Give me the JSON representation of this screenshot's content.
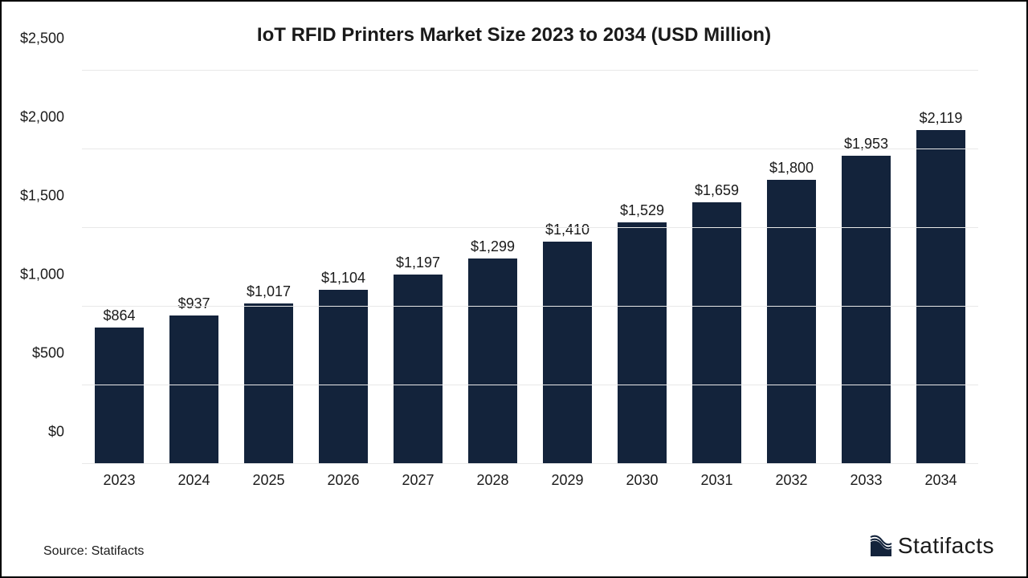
{
  "chart": {
    "type": "bar",
    "title": "IoT RFID Printers Market Size 2023 to 2034 (USD Million)",
    "title_fontsize": 24,
    "title_fontweight": "bold",
    "background_color": "#ffffff",
    "border_color": "#000000",
    "grid_color": "#e8e8e8",
    "axis_line_color": "#bfbfbf",
    "text_color": "#1a1a1a",
    "label_fontsize": 18,
    "value_label_fontsize": 18,
    "bar_color": "#13233b",
    "bar_width_ratio": 0.66,
    "ylim": [
      0,
      2500
    ],
    "ytick_step": 500,
    "y_ticks": [
      {
        "v": 0,
        "label": "$0"
      },
      {
        "v": 500,
        "label": "$500"
      },
      {
        "v": 1000,
        "label": "$1,000"
      },
      {
        "v": 1500,
        "label": "$1,500"
      },
      {
        "v": 2000,
        "label": "$2,000"
      },
      {
        "v": 2500,
        "label": "$2,500"
      }
    ],
    "categories": [
      "2023",
      "2024",
      "2025",
      "2026",
      "2027",
      "2028",
      "2029",
      "2030",
      "2031",
      "2032",
      "2033",
      "2034"
    ],
    "values": [
      864,
      937,
      1017,
      1104,
      1197,
      1299,
      1410,
      1529,
      1659,
      1800,
      1953,
      2119
    ],
    "value_labels": [
      "$864",
      "$937",
      "$1,017",
      "$1,104",
      "$1,197",
      "$1,299",
      "$1,410",
      "$1,529",
      "$1,659",
      "$1,800",
      "$1,953",
      "$2,119"
    ]
  },
  "footer": {
    "source_text": "Source: Statifacts",
    "brand_name": "Statifacts",
    "brand_icon_color": "#13233b",
    "brand_fontsize": 28
  }
}
